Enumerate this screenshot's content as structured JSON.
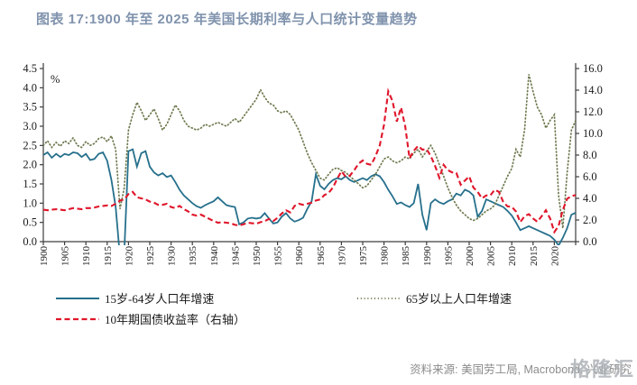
{
  "title": "图表 17:1900 年至 2025 年美国长期利率与人口统计变量趋势",
  "source_note": "资料来源: 美国劳工局, Macrobond, 兴业研究",
  "watermark": "格隆汇",
  "colors": {
    "title": "#8093ad",
    "axis": "#3d3d3d",
    "tick_text": "#1a1a1a",
    "working_age_line": "#26708c",
    "over65_line": "#6e7a4f",
    "bond_yield_line": "#e0162b",
    "source_text": "#8c8c8c"
  },
  "chart_data": {
    "type": "line",
    "title": "图表 17:1900 年至 2025 年美国长期利率与人口统计变量趋势",
    "x_start": 1900,
    "x_end": 2025,
    "left_axis": {
      "label": "%",
      "min": 0.0,
      "max": 4.5,
      "step": 0.5,
      "ticks": [
        "0.0",
        "0.5",
        "1.0",
        "1.5",
        "2.0",
        "2.5",
        "3.0",
        "3.5",
        "4.0",
        "4.5"
      ]
    },
    "right_axis": {
      "min": 0.0,
      "max": 16.0,
      "step": 2.0,
      "ticks": [
        "0.0",
        "2.0",
        "4.0",
        "6.0",
        "8.0",
        "10.0",
        "12.0",
        "14.0",
        "16.0"
      ]
    },
    "x_ticks": [
      "1900",
      "1905",
      "1910",
      "1915",
      "1920",
      "1925",
      "1930",
      "1935",
      "1940",
      "1945",
      "1950",
      "1955",
      "1960",
      "1965",
      "1970",
      "1975",
      "1980",
      "1985",
      "1990",
      "1995",
      "2000",
      "2005",
      "2010",
      "2015",
      "2020"
    ],
    "grid": false,
    "legend_position": "bottom",
    "series": [
      {
        "name": "15岁-64岁人口年增速",
        "axis": "left",
        "style": "solid",
        "color": "#26708c",
        "values": [
          2.25,
          2.32,
          2.18,
          2.28,
          2.2,
          2.28,
          2.25,
          2.32,
          2.3,
          2.2,
          2.28,
          2.12,
          2.15,
          2.28,
          2.32,
          2.1,
          1.6,
          0.9,
          -0.4,
          -0.3,
          2.35,
          2.4,
          1.95,
          2.3,
          2.35,
          1.95,
          1.8,
          1.72,
          1.78,
          1.68,
          1.72,
          1.55,
          1.35,
          1.2,
          1.1,
          1.0,
          0.92,
          0.88,
          0.95,
          1.0,
          1.05,
          1.15,
          1.05,
          0.95,
          0.92,
          0.9,
          0.45,
          0.5,
          0.6,
          0.62,
          0.6,
          0.62,
          0.74,
          0.6,
          0.47,
          0.5,
          0.65,
          0.74,
          0.6,
          0.52,
          0.56,
          0.62,
          0.85,
          1.05,
          1.75,
          1.45,
          1.36,
          1.5,
          1.6,
          1.65,
          1.62,
          1.7,
          1.6,
          1.55,
          1.6,
          1.65,
          1.6,
          1.7,
          1.75,
          1.7,
          1.55,
          1.35,
          1.18,
          0.98,
          1.02,
          0.95,
          0.9,
          1.0,
          1.5,
          0.7,
          0.3,
          1.0,
          1.1,
          1.02,
          0.98,
          1.05,
          1.1,
          1.25,
          1.2,
          1.35,
          1.3,
          1.2,
          0.65,
          0.8,
          1.1,
          1.05,
          1.0,
          0.95,
          0.9,
          0.8,
          0.68,
          0.5,
          0.3,
          0.35,
          0.4,
          0.35,
          0.3,
          0.25,
          0.2,
          0.15,
          0.05,
          -0.1,
          0.1,
          0.35,
          0.7,
          0.75
        ]
      },
      {
        "name": "65岁以上人口年增速",
        "axis": "left",
        "style": "dotted",
        "color": "#6e7a4f",
        "values": [
          2.5,
          2.62,
          2.45,
          2.58,
          2.48,
          2.62,
          2.55,
          2.7,
          2.5,
          2.45,
          2.6,
          2.5,
          2.55,
          2.68,
          2.72,
          2.6,
          2.75,
          2.4,
          0.85,
          1.4,
          2.9,
          3.3,
          3.62,
          3.4,
          3.15,
          3.3,
          3.45,
          3.2,
          2.9,
          3.05,
          3.3,
          3.55,
          3.4,
          3.15,
          3.0,
          2.95,
          2.9,
          2.95,
          3.05,
          3.0,
          3.05,
          3.1,
          3.05,
          3.0,
          3.1,
          3.2,
          3.1,
          3.25,
          3.4,
          3.55,
          3.7,
          3.95,
          3.75,
          3.6,
          3.55,
          3.4,
          3.35,
          3.4,
          3.3,
          3.1,
          2.9,
          2.6,
          2.3,
          2.05,
          1.85,
          1.65,
          1.6,
          1.75,
          1.88,
          1.92,
          1.85,
          1.8,
          1.7,
          1.6,
          1.5,
          1.4,
          1.45,
          1.6,
          1.75,
          1.95,
          2.15,
          2.2,
          2.1,
          2.05,
          2.1,
          2.2,
          2.15,
          2.3,
          2.4,
          2.2,
          2.35,
          2.5,
          2.3,
          2.0,
          1.7,
          1.4,
          1.15,
          0.95,
          0.8,
          0.7,
          0.6,
          0.55,
          0.6,
          0.7,
          0.8,
          0.85,
          0.95,
          1.2,
          1.45,
          1.7,
          1.9,
          2.4,
          2.2,
          2.9,
          4.35,
          3.9,
          3.5,
          3.3,
          2.95,
          3.15,
          3.3,
          1.2,
          0.35,
          1.8,
          2.9,
          3.15
        ]
      },
      {
        "name": "10年期国债收益率（右轴）",
        "axis": "right",
        "style": "dashed",
        "color": "#e0162b",
        "values": [
          2.95,
          2.9,
          2.95,
          3.0,
          2.95,
          2.9,
          3.0,
          3.1,
          3.05,
          3.0,
          3.1,
          3.1,
          3.15,
          3.25,
          3.3,
          3.35,
          3.3,
          3.5,
          3.8,
          3.9,
          4.4,
          4.6,
          4.1,
          4.0,
          3.9,
          3.7,
          3.6,
          3.4,
          3.4,
          3.5,
          3.2,
          3.1,
          3.3,
          3.0,
          2.8,
          2.5,
          2.4,
          2.5,
          2.3,
          2.1,
          1.9,
          1.75,
          1.8,
          1.75,
          1.7,
          1.55,
          1.5,
          1.6,
          1.75,
          1.7,
          1.65,
          1.8,
          1.9,
          2.1,
          1.9,
          2.2,
          2.6,
          2.9,
          2.7,
          3.3,
          3.5,
          3.4,
          3.5,
          3.6,
          3.8,
          3.9,
          4.3,
          4.5,
          5.0,
          5.8,
          6.5,
          6.0,
          6.1,
          6.6,
          7.2,
          7.5,
          7.2,
          7.1,
          7.9,
          8.9,
          10.8,
          13.9,
          13.0,
          11.1,
          12.4,
          10.6,
          7.7,
          8.4,
          8.85,
          8.5,
          8.55,
          7.9,
          7.0,
          5.9,
          7.1,
          6.6,
          6.4,
          6.35,
          5.26,
          5.65,
          6.03,
          5.0,
          4.6,
          4.0,
          4.27,
          4.29,
          4.8,
          4.6,
          3.66,
          3.26,
          3.22,
          2.78,
          1.8,
          2.35,
          2.54,
          2.14,
          1.84,
          2.33,
          2.91,
          2.14,
          0.89,
          1.45,
          2.95,
          3.96,
          4.21,
          4.3
        ]
      }
    ]
  }
}
